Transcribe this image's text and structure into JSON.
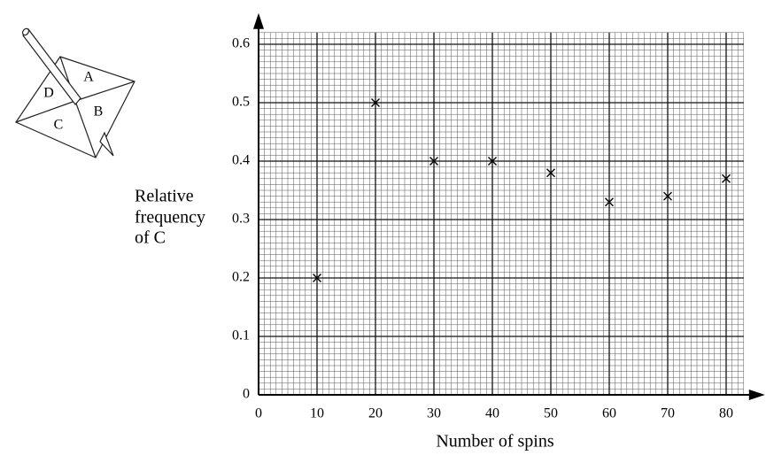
{
  "chart_data": {
    "type": "scatter",
    "ylabel": [
      "Relative",
      "frequency",
      "of C"
    ],
    "xlabel": "Number of spins",
    "x": [
      10,
      20,
      30,
      40,
      50,
      60,
      70,
      80
    ],
    "values": [
      0.2,
      0.5,
      0.4,
      0.4,
      0.38,
      0.33,
      0.34,
      0.37
    ],
    "color": "#000000",
    "xlim": [
      0,
      83
    ],
    "ylim": [
      0,
      0.62
    ],
    "xticks": [
      0,
      10,
      20,
      30,
      40,
      50,
      60,
      70,
      80
    ],
    "yticks": [
      0,
      0.1,
      0.2,
      0.3,
      0.4,
      0.5,
      0.6
    ],
    "grid": true
  },
  "diagram": {
    "labels": [
      "A",
      "B",
      "C",
      "D"
    ]
  }
}
